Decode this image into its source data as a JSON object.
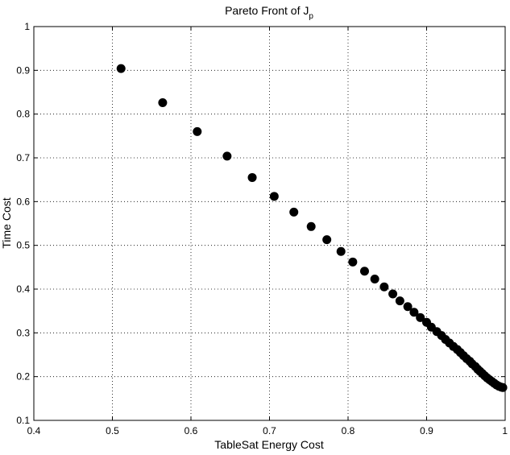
{
  "chart_data": {
    "type": "scatter",
    "title": "Pareto Front of J",
    "title_subscript": "p",
    "xlabel": "TableSat Energy Cost",
    "ylabel": "Time Cost",
    "xlim": [
      0.4,
      1.0
    ],
    "ylim": [
      0.1,
      1.0
    ],
    "xticks": [
      "0.4",
      "0.5",
      "0.6",
      "0.7",
      "0.8",
      "0.9",
      "1"
    ],
    "yticks": [
      "0.1",
      "0.2",
      "0.3",
      "0.4",
      "0.5",
      "0.6",
      "0.7",
      "0.8",
      "0.9",
      "1"
    ],
    "grid": true,
    "marker_color": "#000000",
    "points": [
      [
        0.511,
        0.904
      ],
      [
        0.564,
        0.826
      ],
      [
        0.608,
        0.76
      ],
      [
        0.646,
        0.704
      ],
      [
        0.678,
        0.655
      ],
      [
        0.706,
        0.612
      ],
      [
        0.731,
        0.576
      ],
      [
        0.753,
        0.543
      ],
      [
        0.773,
        0.513
      ],
      [
        0.791,
        0.486
      ],
      [
        0.806,
        0.462
      ],
      [
        0.821,
        0.441
      ],
      [
        0.834,
        0.423
      ],
      [
        0.846,
        0.405
      ],
      [
        0.857,
        0.389
      ],
      [
        0.866,
        0.373
      ],
      [
        0.876,
        0.36
      ],
      [
        0.884,
        0.347
      ],
      [
        0.892,
        0.335
      ],
      [
        0.9,
        0.324
      ],
      [
        0.906,
        0.313
      ],
      [
        0.913,
        0.303
      ],
      [
        0.919,
        0.294
      ],
      [
        0.924,
        0.285
      ],
      [
        0.929,
        0.277
      ],
      [
        0.934,
        0.269
      ],
      [
        0.939,
        0.262
      ],
      [
        0.943,
        0.255
      ],
      [
        0.947,
        0.248
      ],
      [
        0.951,
        0.241
      ],
      [
        0.955,
        0.235
      ],
      [
        0.958,
        0.229
      ],
      [
        0.962,
        0.223
      ],
      [
        0.965,
        0.217
      ],
      [
        0.968,
        0.212
      ],
      [
        0.971,
        0.207
      ],
      [
        0.974,
        0.202
      ],
      [
        0.977,
        0.197
      ],
      [
        0.98,
        0.193
      ],
      [
        0.983,
        0.189
      ],
      [
        0.986,
        0.185
      ],
      [
        0.989,
        0.181
      ],
      [
        0.992,
        0.178
      ],
      [
        0.995,
        0.176
      ],
      [
        0.997,
        0.175
      ]
    ]
  }
}
